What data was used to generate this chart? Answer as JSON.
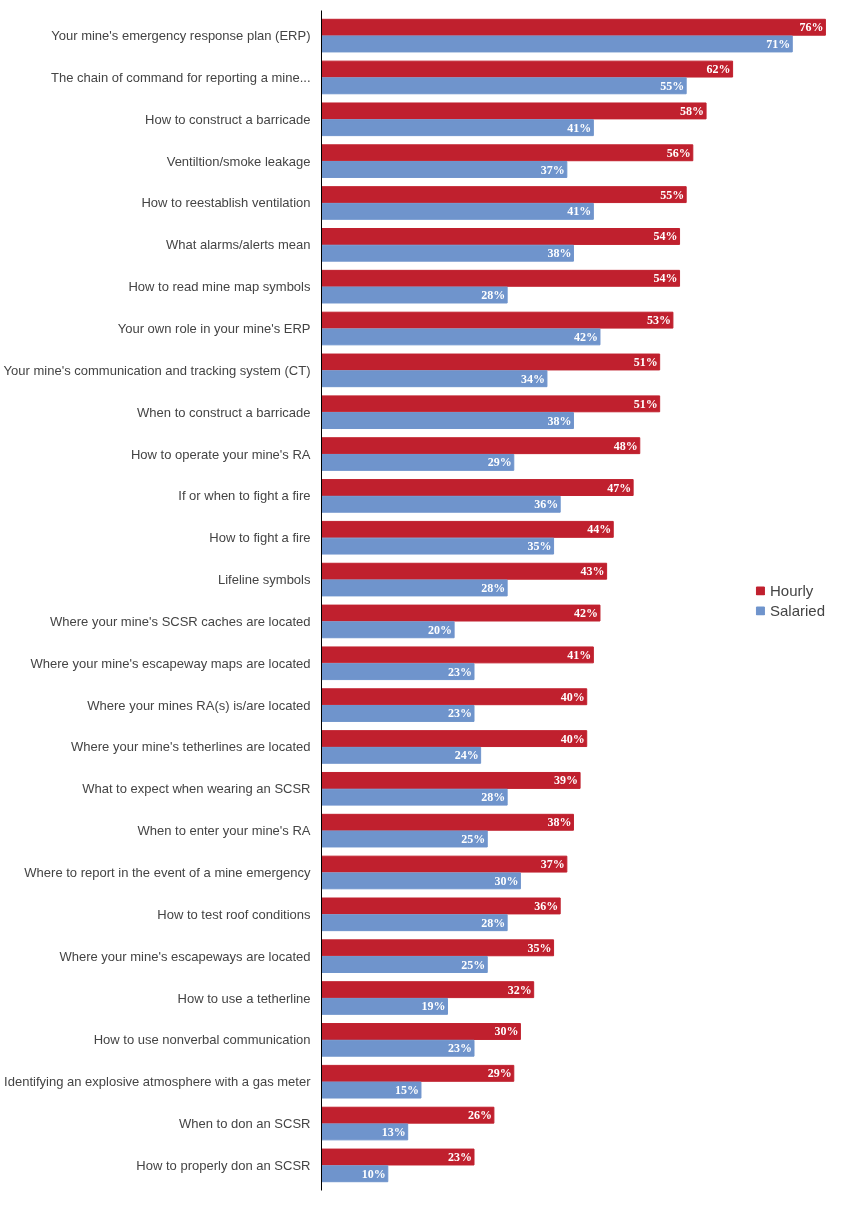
{
  "chart_data": {
    "type": "bar",
    "orientation": "horizontal",
    "tick_labels": "y",
    "grid": false,
    "legend": "right",
    "data_labels": true,
    "categories": [
      "Your mine's emergency response plan (ERP)",
      "The chain of command for reporting a mine...",
      "How to construct a barricade",
      "Ventiltion/smoke leakage",
      "How to reestablish ventilation",
      "What alarms/alerts mean",
      "How to read mine map symbols",
      "Your own role in your mine's ERP",
      "Your mine's communication and tracking system (CT)",
      "When to construct a barricade",
      "How to operate your mine's RA",
      "If or when to fight a fire",
      "How to fight a fire",
      "Lifeline symbols",
      "Where your mine's SCSR caches are located",
      "Where your mine's escapeway maps are located",
      "Where your mines RA(s) is/are located",
      "Where your mine's tetherlines are located",
      "What to expect when wearing an SCSR",
      "When to enter your mine's RA",
      "Where to report in the event of a mine emergency",
      "How to test roof conditions",
      "Where your mine's escapeways are located",
      "How to use a tetherline",
      "How to use nonverbal communication",
      "Identifying an explosive atmosphere with a gas meter",
      "When to don an SCSR",
      "How to properly don an SCSR"
    ],
    "series": [
      {
        "name": "Hourly",
        "color": "#c0202e",
        "values": [
          76,
          62,
          58,
          56,
          55,
          54,
          54,
          53,
          51,
          51,
          48,
          47,
          44,
          43,
          42,
          41,
          40,
          40,
          39,
          38,
          37,
          36,
          35,
          32,
          30,
          29,
          26,
          23
        ],
        "value_labels": [
          "76%",
          "62%",
          "58%",
          "56%",
          "55%",
          "54%",
          "54%",
          "53%",
          "51%",
          "51%",
          "48%",
          "47%",
          "44%",
          "43%",
          "42%",
          "41%",
          "40%",
          "40%",
          "39%",
          "38%",
          "37%",
          "36%",
          "35%",
          "32%",
          "30%",
          "29%",
          "26%",
          "23%"
        ]
      },
      {
        "name": "Salaried",
        "color": "#6f94cc",
        "values": [
          71,
          55,
          41,
          37,
          41,
          38,
          28,
          42,
          34,
          38,
          29,
          36,
          35,
          28,
          20,
          23,
          23,
          24,
          28,
          25,
          30,
          28,
          25,
          19,
          23,
          15,
          13,
          10
        ],
        "value_labels": [
          "71%",
          "55%",
          "41%",
          "37%",
          "41%",
          "38%",
          "28%",
          "42%",
          "34%",
          "38%",
          "29%",
          "36%",
          "35%",
          "28%",
          "20%",
          "23%",
          "23%",
          "24%",
          "28%",
          "25%",
          "30%",
          "28%",
          "25%",
          "19%",
          "23%",
          "15%",
          "13%",
          "10%"
        ]
      }
    ]
  }
}
